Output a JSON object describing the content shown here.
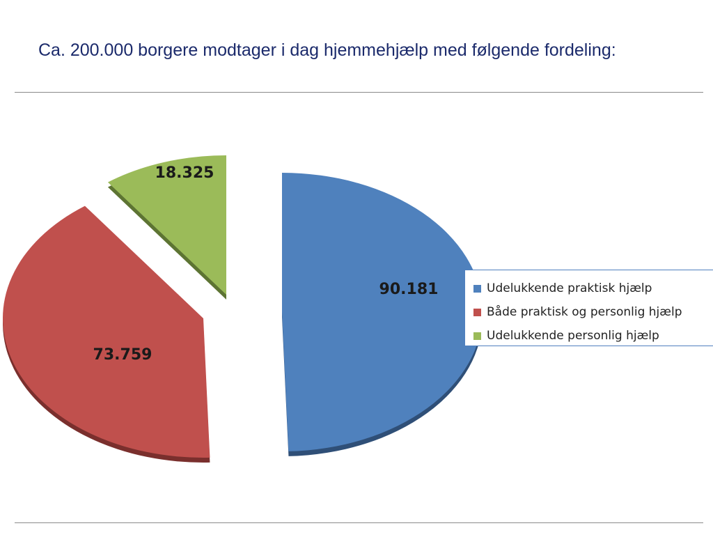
{
  "page": {
    "title": "Ca. 200.000 borgere modtager i dag hjemmehjælp med følgende fordeling:"
  },
  "chart_data": {
    "type": "pie",
    "title": "",
    "exploded": true,
    "legend_position": "right",
    "slices": [
      {
        "label": "Udelukkende praktisk hjælp",
        "value": 90181,
        "display": "90.181",
        "color": "#4f81bd",
        "dark": "#2f4f77"
      },
      {
        "label": "Både praktisk og personlig hjælp",
        "value": 73759,
        "display": "73.759",
        "color": "#c0504d",
        "dark": "#7a2f2d"
      },
      {
        "label": "Udelukkende personlig hjælp",
        "value": 18325,
        "display": "18.325",
        "color": "#9bbb59",
        "dark": "#5d7433"
      }
    ]
  }
}
